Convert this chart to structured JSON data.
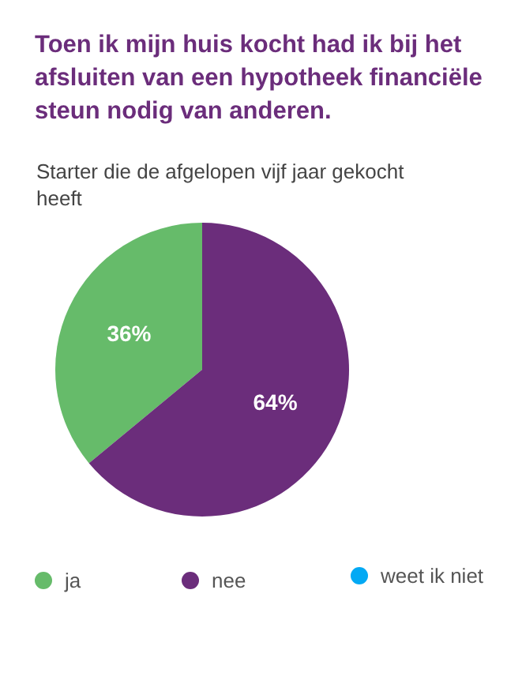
{
  "chart_data": {
    "type": "pie",
    "title": "Toen ik mijn huis kocht had ik bij het afsluiten van een hypotheek financiële steun nodig van anderen.",
    "subtitle": "Starter die de afgelopen vijf jaar gekocht heeft",
    "categories": [
      "ja",
      "nee",
      "weet ik niet"
    ],
    "values": [
      36,
      64,
      0
    ],
    "colors": [
      "#66bb6a",
      "#6b2d7b",
      "#03a9f4"
    ],
    "value_labels": [
      "36%",
      "64%",
      null
    ],
    "legend": "bottom"
  }
}
